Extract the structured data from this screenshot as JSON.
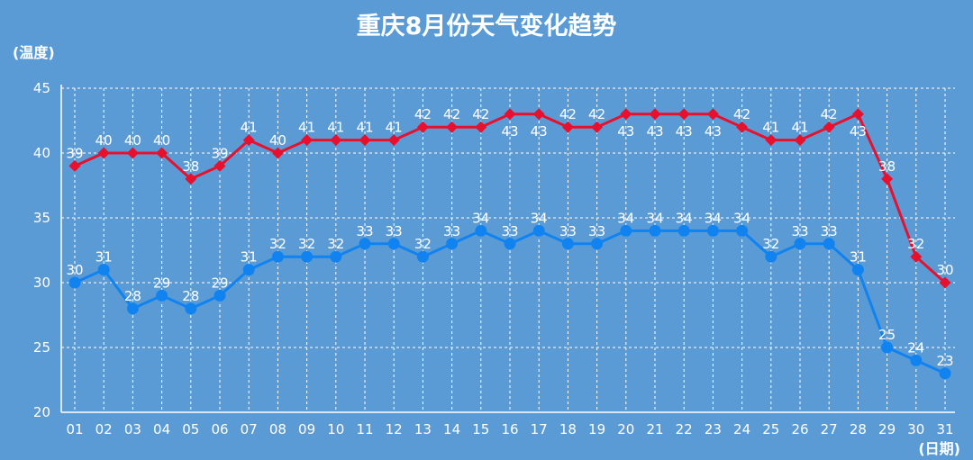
{
  "chart_data": {
    "type": "line",
    "title": "重庆8月份天气变化趋势",
    "ylabel": "(温度)",
    "xlabel": "(日期)",
    "ylim": [
      20,
      45
    ],
    "yticks": [
      20,
      25,
      30,
      35,
      40,
      45
    ],
    "grid": true,
    "categories": [
      "01",
      "02",
      "03",
      "04",
      "05",
      "06",
      "07",
      "08",
      "09",
      "10",
      "11",
      "12",
      "13",
      "14",
      "15",
      "16",
      "17",
      "18",
      "19",
      "20",
      "21",
      "22",
      "23",
      "24",
      "25",
      "26",
      "27",
      "28",
      "29",
      "30",
      "31"
    ],
    "series": [
      {
        "color": "#e8102d",
        "marker": "diamond",
        "label_position": "above-or-below",
        "values": [
          39,
          40,
          40,
          40,
          38,
          39,
          41,
          40,
          41,
          41,
          41,
          41,
          42,
          42,
          42,
          43,
          43,
          42,
          42,
          43,
          43,
          43,
          43,
          42,
          41,
          41,
          42,
          43,
          38,
          32,
          30
        ]
      },
      {
        "color": "#1083f0",
        "marker": "circle",
        "label_position": "above",
        "values": [
          30,
          31,
          28,
          29,
          28,
          29,
          31,
          32,
          32,
          32,
          33,
          33,
          32,
          33,
          34,
          33,
          34,
          33,
          33,
          34,
          34,
          34,
          34,
          34,
          32,
          33,
          33,
          31,
          25,
          24,
          23
        ]
      }
    ]
  }
}
